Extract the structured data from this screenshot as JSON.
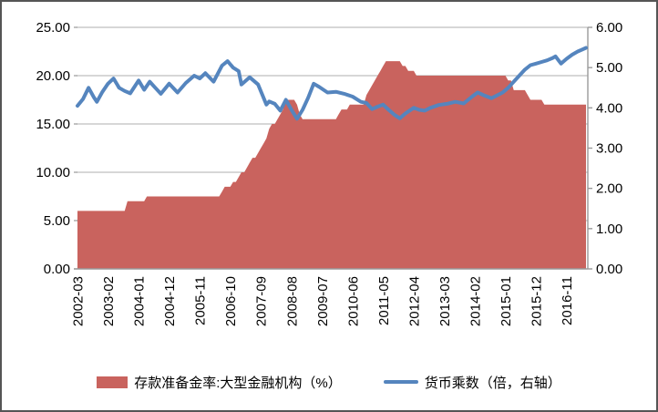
{
  "chart_data": {
    "type": "combo",
    "title": "",
    "grid": true,
    "legend_position": "bottom",
    "months_total": 184,
    "x_axis": {
      "unit": "month",
      "start": "2002-03",
      "tick_step_months": 11,
      "tick_labels": [
        "2002-03",
        "2003-02",
        "2004-01",
        "2004-12",
        "2005-11",
        "2006-10",
        "2007-09",
        "2008-08",
        "2009-07",
        "2010-06",
        "2011-05",
        "2012-04",
        "2013-03",
        "2014-02",
        "2015-01",
        "2015-12",
        "2016-11"
      ]
    },
    "left_axis": {
      "min": 0,
      "max": 25,
      "tick_labels": [
        "0.00",
        "5.00",
        "10.00",
        "15.00",
        "20.00",
        "25.00"
      ]
    },
    "right_axis": {
      "min": 0,
      "max": 6,
      "tick_labels": [
        "0.00",
        "1.00",
        "2.00",
        "3.00",
        "4.00",
        "5.00",
        "6.00"
      ]
    },
    "series": [
      {
        "name": "存款准备金率:大型金融机构（%）",
        "type": "area",
        "axis": "left",
        "color": "#C9635E",
        "steps_months_value": [
          [
            18,
            6.0
          ],
          [
            7,
            7.0
          ],
          [
            27,
            7.5
          ],
          [
            1,
            8.0
          ],
          [
            3,
            8.5
          ],
          [
            2,
            9.0
          ],
          [
            1,
            9.5
          ],
          [
            2,
            10.0
          ],
          [
            1,
            10.5
          ],
          [
            1,
            11.0
          ],
          [
            2,
            11.5
          ],
          [
            1,
            12.0
          ],
          [
            1,
            12.5
          ],
          [
            1,
            13.0
          ],
          [
            1,
            13.5
          ],
          [
            1,
            14.5
          ],
          [
            2,
            15.0
          ],
          [
            1,
            15.5
          ],
          [
            1,
            16.0
          ],
          [
            1,
            16.5
          ],
          [
            4,
            17.5
          ],
          [
            1,
            17.0
          ],
          [
            1,
            16.0
          ],
          [
            13,
            15.5
          ],
          [
            1,
            16.0
          ],
          [
            3,
            16.5
          ],
          [
            6,
            17.0
          ],
          [
            1,
            18.0
          ],
          [
            1,
            18.5
          ],
          [
            1,
            19.0
          ],
          [
            1,
            19.5
          ],
          [
            1,
            20.0
          ],
          [
            1,
            20.5
          ],
          [
            1,
            21.0
          ],
          [
            6,
            21.5
          ],
          [
            2,
            21.0
          ],
          [
            3,
            20.5
          ],
          [
            33,
            20.0
          ],
          [
            2,
            19.5
          ],
          [
            5,
            18.5
          ],
          [
            1,
            18.0
          ],
          [
            5,
            17.5
          ],
          [
            16,
            17.0
          ]
        ]
      },
      {
        "name": "货币乘数（倍，右轴）",
        "type": "line",
        "axis": "right",
        "color": "#5585BE",
        "points_monthindex_value": [
          [
            0,
            4.05
          ],
          [
            2,
            4.22
          ],
          [
            4,
            4.5
          ],
          [
            6,
            4.25
          ],
          [
            7,
            4.15
          ],
          [
            9,
            4.4
          ],
          [
            11,
            4.6
          ],
          [
            13,
            4.73
          ],
          [
            15,
            4.5
          ],
          [
            17,
            4.42
          ],
          [
            19,
            4.36
          ],
          [
            22,
            4.68
          ],
          [
            24,
            4.45
          ],
          [
            26,
            4.65
          ],
          [
            28,
            4.5
          ],
          [
            30,
            4.35
          ],
          [
            33,
            4.6
          ],
          [
            36,
            4.38
          ],
          [
            39,
            4.62
          ],
          [
            42,
            4.8
          ],
          [
            44,
            4.73
          ],
          [
            46,
            4.86
          ],
          [
            49,
            4.65
          ],
          [
            52,
            5.05
          ],
          [
            54,
            5.16
          ],
          [
            56,
            5.0
          ],
          [
            58,
            4.91
          ],
          [
            59,
            4.58
          ],
          [
            62,
            4.76
          ],
          [
            65,
            4.58
          ],
          [
            68,
            4.08
          ],
          [
            69,
            4.16
          ],
          [
            71,
            4.1
          ],
          [
            73,
            3.93
          ],
          [
            75,
            4.2
          ],
          [
            77,
            3.95
          ],
          [
            79,
            3.73
          ],
          [
            81,
            3.95
          ],
          [
            83,
            4.25
          ],
          [
            85,
            4.6
          ],
          [
            87,
            4.52
          ],
          [
            90,
            4.38
          ],
          [
            93,
            4.4
          ],
          [
            96,
            4.35
          ],
          [
            99,
            4.28
          ],
          [
            102,
            4.15
          ],
          [
            104,
            4.12
          ],
          [
            106,
            3.97
          ],
          [
            108,
            4.03
          ],
          [
            110,
            4.08
          ],
          [
            112,
            3.95
          ],
          [
            114,
            3.83
          ],
          [
            116,
            3.74
          ],
          [
            118,
            3.86
          ],
          [
            121,
            4.0
          ],
          [
            123,
            3.95
          ],
          [
            125,
            3.93
          ],
          [
            127,
            4.0
          ],
          [
            130,
            4.07
          ],
          [
            133,
            4.1
          ],
          [
            136,
            4.15
          ],
          [
            139,
            4.11
          ],
          [
            142,
            4.28
          ],
          [
            144,
            4.38
          ],
          [
            146,
            4.32
          ],
          [
            149,
            4.24
          ],
          [
            151,
            4.31
          ],
          [
            153,
            4.38
          ],
          [
            155,
            4.5
          ],
          [
            157,
            4.65
          ],
          [
            159,
            4.8
          ],
          [
            161,
            4.95
          ],
          [
            163,
            5.06
          ],
          [
            165,
            5.1
          ],
          [
            167,
            5.14
          ],
          [
            169,
            5.18
          ],
          [
            171,
            5.24
          ],
          [
            172,
            5.28
          ],
          [
            174,
            5.1
          ],
          [
            176,
            5.22
          ],
          [
            178,
            5.32
          ],
          [
            180,
            5.4
          ],
          [
            183,
            5.49
          ]
        ]
      }
    ],
    "colors": {
      "gridline": "#BFBFBF",
      "axis_line": "#9A9A9A",
      "frame_border": "#555555",
      "text": "#000000"
    }
  }
}
